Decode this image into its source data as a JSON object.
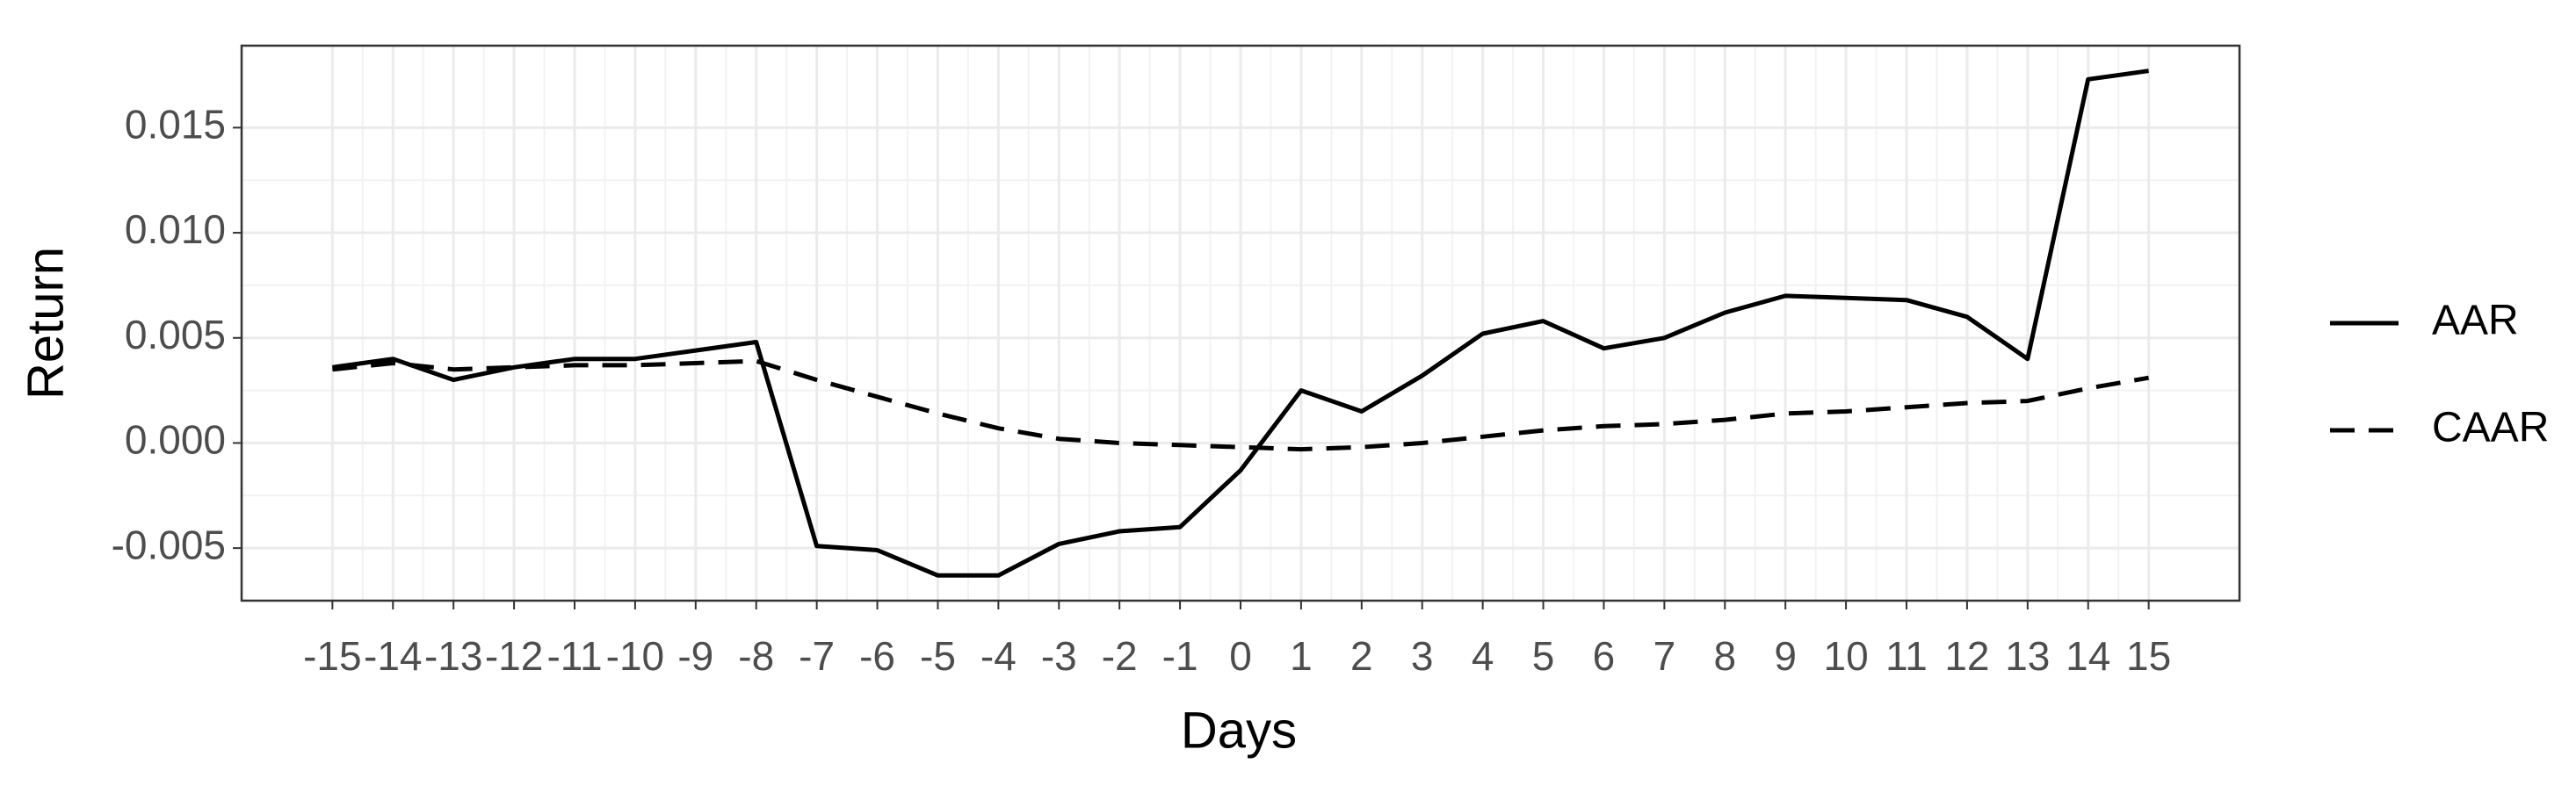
{
  "chart_data": {
    "type": "line",
    "x_label": "Days",
    "y_label": "Return",
    "x": [
      -15,
      -14,
      -13,
      -12,
      -11,
      -10,
      -9,
      -8,
      -7,
      -6,
      -5,
      -4,
      -3,
      -2,
      -1,
      0,
      1,
      2,
      3,
      4,
      5,
      6,
      7,
      8,
      9,
      10,
      11,
      12,
      13,
      14,
      15
    ],
    "series": [
      {
        "name": "AAR",
        "color": "#000000",
        "linestyle": "solid",
        "values": [
          0.0036,
          0.004,
          0.003,
          0.0036,
          0.004,
          0.004,
          0.0044,
          0.0048,
          -0.0049,
          -0.0051,
          -0.0063,
          -0.0063,
          -0.0048,
          -0.0042,
          -0.004,
          -0.0013,
          0.0025,
          0.0015,
          0.0032,
          0.0052,
          0.0058,
          0.0045,
          0.005,
          0.0062,
          0.007,
          0.0069,
          0.0068,
          0.006,
          0.004,
          0.0173,
          0.0177
        ]
      },
      {
        "name": "CAAR",
        "color": "#000000",
        "linestyle": "dashed",
        "values": [
          0.0035,
          0.0038,
          0.0035,
          0.0036,
          0.0037,
          0.0037,
          0.0038,
          0.0039,
          0.003,
          0.0022,
          0.0014,
          0.0007,
          0.0002,
          0.0,
          -0.0001,
          -0.0002,
          -0.0003,
          -0.0002,
          0.0,
          0.0003,
          0.0006,
          0.0008,
          0.0009,
          0.0011,
          0.0014,
          0.0015,
          0.0017,
          0.0019,
          0.002,
          0.0026,
          0.0031
        ]
      }
    ],
    "xlim": [
      -16.5,
      16.5
    ],
    "xticks": [
      -15,
      -14,
      -13,
      -12,
      -11,
      -10,
      -9,
      -8,
      -7,
      -6,
      -5,
      -4,
      -3,
      -2,
      -1,
      0,
      1,
      2,
      3,
      4,
      5,
      6,
      7,
      8,
      9,
      10,
      11,
      12,
      13,
      14,
      15
    ],
    "ylim": [
      -0.0075,
      0.0189
    ],
    "yticks": [
      -0.005,
      {
        "value": 0,
        "label": "0.000"
      },
      0.005,
      {
        "value": 0.01,
        "label": "0.010"
      },
      0.015
    ],
    "grid": true,
    "legend": "right"
  }
}
